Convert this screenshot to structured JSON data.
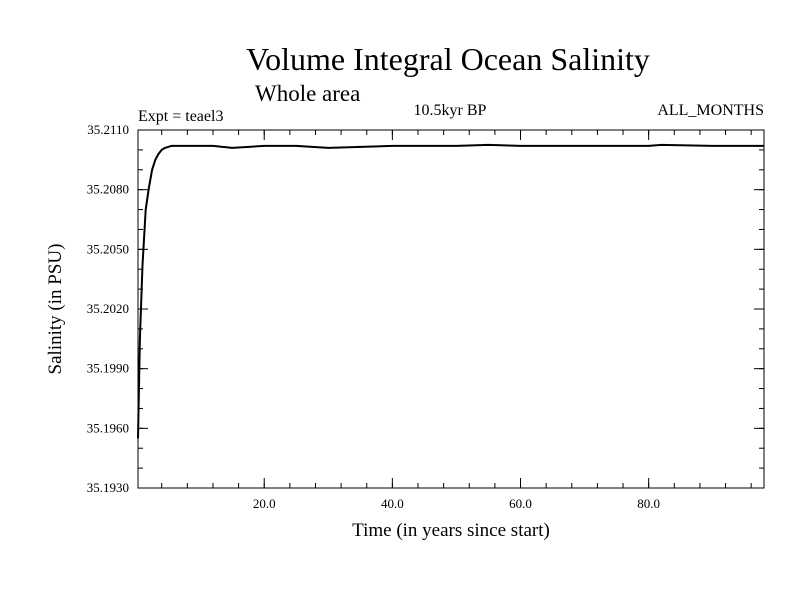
{
  "chart_data": {
    "type": "line",
    "title": "Volume Integral Ocean Salinity",
    "subtitle": "Whole area",
    "experiment": "Expt = teael3",
    "period": "10.5kyr BP",
    "months": "ALL_MONTHS",
    "xlabel": "Time (in years since start)",
    "ylabel": "Salinity (in PSU)",
    "xlim": [
      0.3,
      98
    ],
    "ylim": [
      35.193,
      35.211
    ],
    "x_ticks": [
      {
        "value": 20,
        "label": "20.0"
      },
      {
        "value": 40,
        "label": "40.0"
      },
      {
        "value": 60,
        "label": "60.0"
      },
      {
        "value": 80,
        "label": "80.0"
      }
    ],
    "y_ticks": [
      {
        "value": 35.193,
        "label": "35.1930"
      },
      {
        "value": 35.196,
        "label": "35.1960"
      },
      {
        "value": 35.199,
        "label": "35.1990"
      },
      {
        "value": 35.202,
        "label": "35.2020"
      },
      {
        "value": 35.205,
        "label": "35.2050"
      },
      {
        "value": 35.208,
        "label": "35.2080"
      },
      {
        "value": 35.211,
        "label": "35.2110"
      }
    ],
    "x_minor_step": 4,
    "y_minor_step": 0.001,
    "grid": false,
    "series": [
      {
        "name": "salinity",
        "color": "#000000",
        "x": [
          0.3,
          0.6,
          1.0,
          1.5,
          2.0,
          2.5,
          3.0,
          3.5,
          4.0,
          4.5,
          5.0,
          5.5,
          6.0,
          7.0,
          8.0,
          10.0,
          12.0,
          15.0,
          20.0,
          25.0,
          30.0,
          40.0,
          50.0,
          55.0,
          60.0,
          70.0,
          80.0,
          82.0,
          90.0,
          98.0
        ],
        "values": [
          35.1955,
          35.2005,
          35.2042,
          35.207,
          35.2081,
          35.209,
          35.2095,
          35.2098,
          35.21,
          35.2101,
          35.21015,
          35.2102,
          35.2102,
          35.2102,
          35.2102,
          35.2102,
          35.2102,
          35.2101,
          35.2102,
          35.2102,
          35.2101,
          35.2102,
          35.2102,
          35.21025,
          35.2102,
          35.2102,
          35.2102,
          35.21025,
          35.2102,
          35.2102
        ]
      }
    ]
  }
}
